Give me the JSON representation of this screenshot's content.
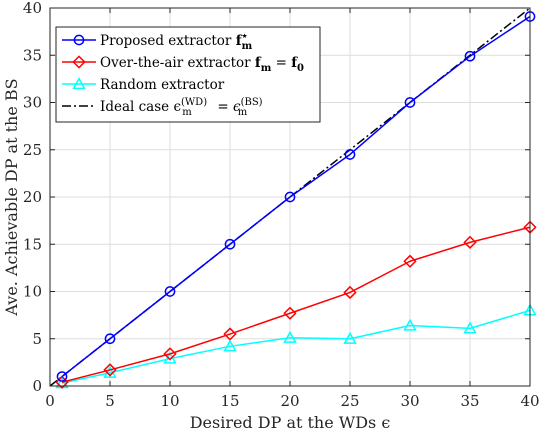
{
  "chart_data": {
    "type": "line",
    "xlabel": "Desired DP at the WDs ϵ",
    "ylabel": "Ave. Achievable DP at the BS",
    "xlim": [
      0,
      40
    ],
    "ylim": [
      0,
      40
    ],
    "xticks": [
      0,
      5,
      10,
      15,
      20,
      25,
      30,
      35,
      40
    ],
    "yticks": [
      0,
      5,
      10,
      15,
      20,
      25,
      30,
      35,
      40
    ],
    "grid": true,
    "legend_position": "top-left",
    "series": [
      {
        "name": "Proposed extractor f",
        "name_sub": "m",
        "name_sup": "⋆",
        "color": "#0000ff",
        "marker": "circle",
        "line": "solid",
        "x": [
          1,
          5,
          10,
          15,
          20,
          25,
          30,
          35,
          40
        ],
        "y": [
          1.0,
          5.0,
          10.0,
          15.0,
          20.0,
          24.5,
          30.0,
          34.9,
          39.1
        ]
      },
      {
        "name": "Over-the-air extractor f",
        "name_sub": "m",
        "name_tail": " = f",
        "name_tail_sub": "0",
        "color": "#ff0000",
        "marker": "diamond",
        "line": "solid",
        "x": [
          1,
          5,
          10,
          15,
          20,
          25,
          30,
          35,
          40
        ],
        "y": [
          0.4,
          1.7,
          3.4,
          5.5,
          7.7,
          9.9,
          13.2,
          15.2,
          16.8
        ]
      },
      {
        "name": "Random extractor",
        "color": "#00ffff",
        "marker": "triangle",
        "line": "solid",
        "x": [
          1,
          5,
          10,
          15,
          20,
          25,
          30,
          35,
          40
        ],
        "y": [
          0.3,
          1.4,
          2.9,
          4.2,
          5.1,
          5.0,
          6.4,
          6.1,
          8.0
        ]
      },
      {
        "name": "Ideal case ϵ",
        "name_sub": "m",
        "name_sup": "(WD)",
        "name_tail": " = ϵ",
        "name_tail_sub": "m",
        "name_tail_sup": "(BS)",
        "color": "#000000",
        "marker": "none",
        "line": "dashdot",
        "x": [
          0,
          40
        ],
        "y": [
          0,
          40
        ]
      }
    ]
  }
}
